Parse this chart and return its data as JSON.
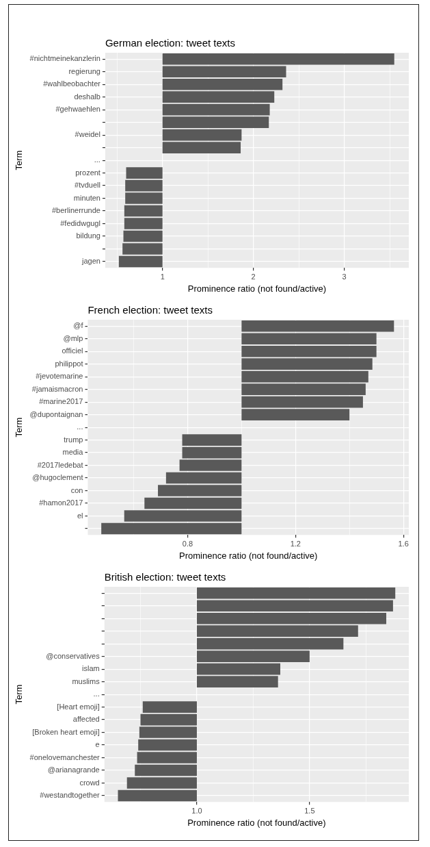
{
  "chart_data": [
    {
      "type": "bar",
      "orientation": "horizontal",
      "title": "German election: tweet texts",
      "xlabel": "Prominence ratio (not found/active)",
      "ylabel": "Term",
      "grid": true,
      "color": "#595959",
      "categories": [
        "#nichtmeinekanzlerin",
        "regierung",
        "#wahlbeobachter",
        "deshalb",
        "#gehwaehlen",
        null,
        "#weidel",
        null,
        "...",
        "prozent",
        "#tvduell",
        "minuten",
        "#berlinerrunde",
        "#fedidwgugl",
        "bildung",
        null,
        "jagen"
      ],
      "base": [
        1,
        1,
        1,
        1,
        1,
        1,
        1,
        1,
        null,
        1,
        1,
        1,
        1,
        1,
        1,
        1,
        1
      ],
      "values": [
        2.55,
        1.36,
        1.32,
        1.23,
        1.18,
        1.17,
        0.87,
        0.86,
        null,
        -0.4,
        -0.41,
        -0.41,
        -0.42,
        -0.42,
        -0.43,
        -0.44,
        -0.48
      ],
      "xlim": [
        0.37,
        3.71
      ],
      "xticks": [
        {
          "value": 0.5,
          "label": null
        },
        1,
        {
          "value": 1.5,
          "label": null
        },
        2,
        {
          "value": 2.5,
          "label": null
        },
        3,
        {
          "value": 3.5,
          "label": null
        }
      ]
    },
    {
      "type": "bar",
      "orientation": "horizontal",
      "title": "French election: tweet texts",
      "xlabel": "Prominence ratio (not found/active)",
      "ylabel": "Term",
      "grid": true,
      "color": "#595959",
      "categories": [
        "@f",
        "@mlp",
        "officiel",
        "philippot",
        "#jevotemarine",
        "#jamaismacron",
        "#marine2017",
        "@dupontaignan",
        "...",
        "trump",
        "media",
        "#2017ledebat",
        "@hugoclement",
        "con",
        "#hamon2017",
        "el",
        null
      ],
      "base": [
        1,
        1,
        1,
        1,
        1,
        1,
        1,
        1,
        null,
        1,
        1,
        1,
        1,
        1,
        1,
        1,
        1
      ],
      "values": [
        0.565,
        0.5,
        0.5,
        0.485,
        0.47,
        0.46,
        0.45,
        0.4,
        null,
        -0.22,
        -0.22,
        -0.23,
        -0.28,
        -0.31,
        -0.36,
        -0.435,
        -0.52
      ],
      "xlim": [
        0.43,
        1.62
      ],
      "xticks": [
        {
          "value": 0.6,
          "label": null
        },
        0.8,
        {
          "value": 1.0,
          "label": null
        },
        1.2,
        {
          "value": 1.4,
          "label": null
        },
        1.6
      ]
    },
    {
      "type": "bar",
      "orientation": "horizontal",
      "title": "British election: tweet texts",
      "xlabel": "Prominence ratio (not found/active)",
      "ylabel": "Term",
      "grid": true,
      "color": "#595959",
      "categories": [
        null,
        null,
        null,
        null,
        null,
        "@conservatives",
        "islam",
        "muslims",
        "...",
        "[Heart emoji]",
        "affected",
        "[Broken heart emoji]",
        "e",
        "#onelovemanchester",
        "@arianagrande",
        "crowd",
        "#westandtogether"
      ],
      "base": [
        1,
        1,
        1,
        1,
        1,
        1,
        1,
        1,
        null,
        1,
        1,
        1,
        1,
        1,
        1,
        1,
        1
      ],
      "values": [
        0.88,
        0.87,
        0.84,
        0.715,
        0.65,
        0.5,
        0.37,
        0.36,
        null,
        -0.24,
        -0.25,
        -0.255,
        -0.26,
        -0.265,
        -0.275,
        -0.31,
        -0.35
      ],
      "xlim": [
        0.59,
        1.94
      ],
      "xticks": [
        {
          "value": 0.75,
          "label": null
        },
        {
          "value": 1.0,
          "label": "1.0"
        },
        {
          "value": 1.25,
          "label": null
        },
        1.5,
        {
          "value": 1.75,
          "label": null
        }
      ]
    }
  ]
}
